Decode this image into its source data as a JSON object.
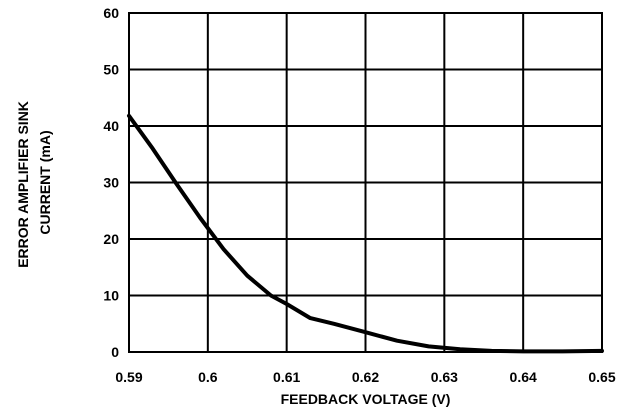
{
  "chart_data": {
    "type": "line",
    "xlabel": "FEEDBACK VOLTAGE (V)",
    "ylabel_lines": [
      "ERROR AMPLIFIER SINK",
      "CURRENT (mA)"
    ],
    "xlim": [
      0.59,
      0.65
    ],
    "ylim": [
      0,
      60
    ],
    "x_ticks": [
      "0.59",
      "0.6",
      "0.61",
      "0.62",
      "0.63",
      "0.64",
      "0.65"
    ],
    "y_ticks": [
      "0",
      "10",
      "20",
      "30",
      "40",
      "50",
      "60"
    ],
    "grid": true,
    "colors": {
      "line": "#000000",
      "grid": "#000000"
    },
    "series": [
      {
        "x": [
          0.59,
          0.593,
          0.596,
          0.599,
          0.602,
          0.605,
          0.608,
          0.61,
          0.613,
          0.616,
          0.62,
          0.624,
          0.628,
          0.632,
          0.636,
          0.64,
          0.645,
          0.65
        ],
        "y": [
          41.8,
          36.0,
          29.8,
          23.8,
          18.2,
          13.5,
          10.0,
          8.5,
          6.0,
          5.0,
          3.5,
          2.0,
          1.0,
          0.5,
          0.2,
          0.1,
          0.1,
          0.2
        ]
      }
    ]
  }
}
